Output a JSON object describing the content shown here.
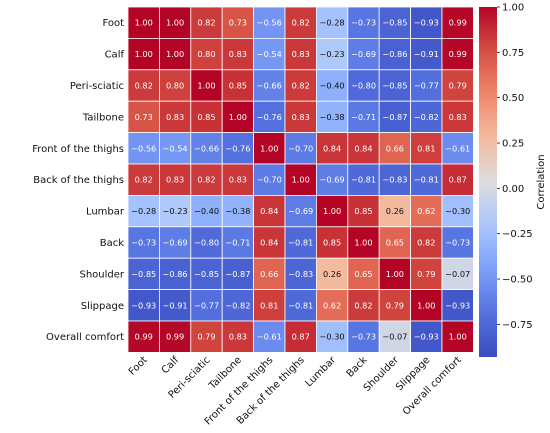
{
  "chart_data": {
    "type": "heatmap",
    "row_labels": [
      "Foot",
      "Calf",
      "Peri-sciatic",
      "Tailbone",
      "Front of the thighs",
      "Back of the thighs",
      "Lumbar",
      "Back",
      "Shoulder",
      "Slippage",
      "Overall comfort"
    ],
    "col_labels": [
      "Foot",
      "Calf",
      "Peri-sciatic",
      "Tailbone",
      "Front of the thighs",
      "Back of the thighs",
      "Lumbar",
      "Back",
      "Shoulder",
      "Slippage",
      "Overall comfort"
    ],
    "values": [
      [
        1.0,
        1.0,
        0.82,
        0.73,
        -0.56,
        0.82,
        -0.28,
        -0.73,
        -0.85,
        -0.93,
        0.99
      ],
      [
        1.0,
        1.0,
        0.8,
        0.83,
        -0.54,
        0.83,
        -0.23,
        -0.69,
        -0.86,
        -0.91,
        0.99
      ],
      [
        0.82,
        0.8,
        1.0,
        0.85,
        -0.66,
        0.82,
        -0.4,
        -0.8,
        -0.85,
        -0.77,
        0.79
      ],
      [
        0.73,
        0.83,
        0.85,
        1.0,
        -0.76,
        0.83,
        -0.38,
        -0.71,
        -0.87,
        -0.82,
        0.83
      ],
      [
        -0.56,
        -0.54,
        -0.66,
        -0.76,
        1.0,
        -0.7,
        0.84,
        0.84,
        0.66,
        0.81,
        -0.61
      ],
      [
        0.82,
        0.83,
        0.82,
        0.83,
        -0.7,
        1.0,
        -0.69,
        -0.81,
        -0.83,
        -0.81,
        0.87
      ],
      [
        -0.28,
        -0.23,
        -0.4,
        -0.38,
        0.84,
        -0.69,
        1.0,
        0.85,
        0.26,
        0.62,
        -0.3
      ],
      [
        -0.73,
        -0.69,
        -0.8,
        -0.71,
        0.84,
        -0.81,
        0.85,
        1.0,
        0.65,
        0.82,
        -0.73
      ],
      [
        -0.85,
        -0.86,
        -0.85,
        -0.87,
        0.66,
        -0.83,
        0.26,
        0.65,
        1.0,
        0.79,
        -0.07
      ],
      [
        -0.93,
        -0.91,
        -0.77,
        -0.82,
        0.81,
        -0.81,
        0.62,
        0.82,
        0.79,
        1.0,
        -0.93
      ],
      [
        0.99,
        0.99,
        0.79,
        0.83,
        -0.61,
        0.87,
        -0.3,
        -0.73,
        -0.07,
        -0.93,
        1.0
      ]
    ],
    "value_range": [
      -1.0,
      1.0
    ],
    "colormap": "coolwarm",
    "colorbar": {
      "label": "Correlation",
      "ticks": [
        1.0,
        0.75,
        0.5,
        0.25,
        0.0,
        -0.25,
        -0.5,
        -0.75
      ],
      "tick_labels": [
        "1.00",
        "0.75",
        "0.50",
        "0.25",
        "0.00",
        "−0.25",
        "−0.50",
        "−0.75"
      ]
    },
    "colors": {
      "negative": "#3b4cc0",
      "neutral": "#dddddd",
      "positive": "#b40426"
    }
  }
}
